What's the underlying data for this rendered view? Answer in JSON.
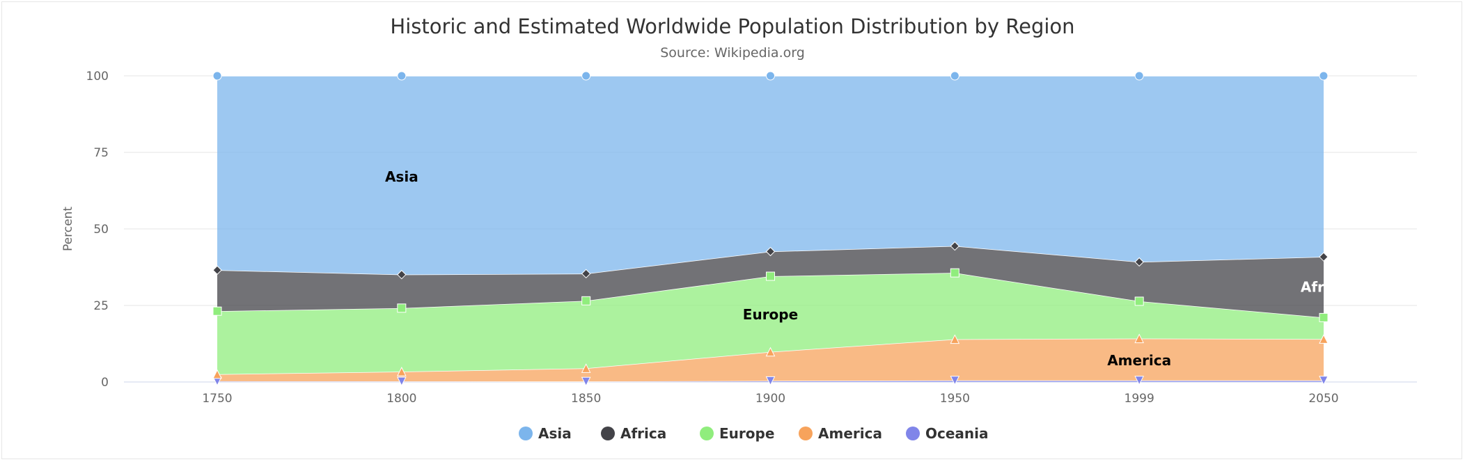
{
  "chart_data": {
    "type": "area",
    "stacking": "percent",
    "title": "Historic and Estimated Worldwide Population Distribution by Region",
    "subtitle": "Source: Wikipedia.org",
    "ylabel": "Percent",
    "ylim": [
      0,
      100
    ],
    "yticks": [
      "0",
      "25",
      "50",
      "75",
      "100"
    ],
    "categories": [
      "1750",
      "1800",
      "1850",
      "1900",
      "1950",
      "1999",
      "2050"
    ],
    "grid": true,
    "legend_placement": "bottom-center",
    "series": [
      {
        "name": "Asia",
        "color": "#7cb5ec",
        "marker": "circle",
        "values": [
          502,
          635,
          809,
          947,
          1402,
          3634,
          5268
        ]
      },
      {
        "name": "Africa",
        "color": "#434348",
        "marker": "diamond",
        "values": [
          106,
          107,
          111,
          133,
          221,
          767,
          1766
        ]
      },
      {
        "name": "Europe",
        "color": "#90ed7d",
        "marker": "square",
        "values": [
          163,
          203,
          276,
          408,
          547,
          729,
          628
        ]
      },
      {
        "name": "America",
        "color": "#f7a35c",
        "marker": "triangle",
        "values": [
          18,
          31,
          54,
          156,
          339,
          818,
          1201
        ]
      },
      {
        "name": "Oceania",
        "color": "#8085e9",
        "marker": "triangle-down",
        "values": [
          2,
          2,
          2,
          6,
          13,
          30,
          46
        ]
      }
    ],
    "annotations": [
      {
        "text": "Asia",
        "category": "1800",
        "y": 67,
        "color": "#000000"
      },
      {
        "text": "Europe",
        "category": "1900",
        "y": 22,
        "color": "#000000"
      },
      {
        "text": "Africa",
        "category": "2050",
        "y": 31,
        "color": "#ffffff"
      },
      {
        "text": "America",
        "category": "1999",
        "y": 7,
        "color": "#000000"
      }
    ]
  }
}
